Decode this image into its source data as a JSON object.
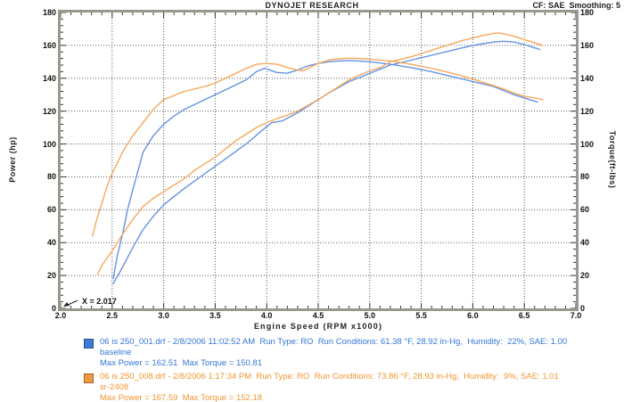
{
  "header": {
    "title": "DYNOJET RESEARCH",
    "cf_label": "CF: SAE  Smoothing: 5"
  },
  "axes": {
    "y_left_title": "Power (hp)",
    "y_right_title": "Torque(ft-lbs)",
    "x_title": "Engine Speed (RPM x1000)",
    "y_tick_labels": [
      "180",
      "160",
      "140",
      "120",
      "100",
      "80",
      "60",
      "40",
      "20",
      "0"
    ],
    "x_tick_labels": [
      "2.0",
      "2.5",
      "3.0",
      "3.5",
      "4.0",
      "4.5",
      "5.0",
      "5.5",
      "6.0",
      "6.5",
      "7.0"
    ]
  },
  "annotation": {
    "text": "X = 2.017"
  },
  "chart_data": {
    "type": "line",
    "title": "DYNOJET RESEARCH",
    "correction": "CF: SAE",
    "smoothing": "5",
    "xlabel": "Engine Speed (RPM x1000)",
    "ylabel_left": "Power (hp)",
    "ylabel_right": "Torque(ft-lbs)",
    "xlim": [
      2.0,
      7.0
    ],
    "ylim": [
      0,
      180
    ],
    "x_tick_step": 0.5,
    "y_tick_step": 20,
    "x_minor_step": 0.1,
    "y_minor_step": 4,
    "grid": "dotted",
    "grid_color": "#2e2e2e",
    "annotations": [
      {
        "text": "X = 2.017",
        "x": 2.017,
        "y": 0
      }
    ],
    "series": [
      {
        "name": "baseline power (hp)",
        "run": "06 is 250_001.drf",
        "color": "#6593E2",
        "max": 162.51,
        "x": [
          2.51,
          2.6,
          2.7,
          2.8,
          2.9,
          3.0,
          3.2,
          3.4,
          3.6,
          3.8,
          3.95,
          4.05,
          4.15,
          4.3,
          4.4,
          4.5,
          4.6,
          4.8,
          5.0,
          5.2,
          5.4,
          5.5,
          5.6,
          5.7,
          5.8,
          5.9,
          6.0,
          6.1,
          6.2,
          6.3,
          6.4,
          6.5,
          6.6,
          6.65
        ],
        "y": [
          15,
          25,
          37,
          48,
          56,
          63,
          73,
          82,
          91,
          100,
          108,
          113,
          114,
          119,
          123,
          127,
          131,
          138,
          143,
          148,
          151,
          152.5,
          154,
          155.5,
          157,
          158.5,
          160,
          161,
          162,
          162.5,
          162,
          160.5,
          158.5,
          157.5
        ]
      },
      {
        "name": "baseline torque (ft-lbs)",
        "run": "06 is 250_001.drf",
        "color": "#6593E2",
        "max": 150.81,
        "x": [
          2.51,
          2.55,
          2.6,
          2.65,
          2.7,
          2.8,
          2.9,
          3.0,
          3.1,
          3.2,
          3.3,
          3.4,
          3.5,
          3.6,
          3.7,
          3.8,
          3.9,
          3.98,
          4.1,
          4.2,
          4.3,
          4.4,
          4.5,
          4.6,
          4.7,
          4.8,
          4.9,
          5.0,
          5.2,
          5.4,
          5.6,
          5.8,
          6.0,
          6.1,
          6.2,
          6.3,
          6.4,
          6.5,
          6.6,
          6.63
        ],
        "y": [
          18,
          32,
          45,
          60,
          72,
          95,
          105,
          112,
          117,
          121,
          124,
          127,
          130,
          133,
          136,
          139,
          144,
          146,
          143.5,
          143,
          145,
          147.5,
          149,
          150,
          150.5,
          150.8,
          150.5,
          150,
          148.5,
          146.5,
          144,
          141,
          138,
          136.5,
          135,
          132.5,
          130,
          128,
          126,
          125.5
        ]
      },
      {
        "name": "sr-2408 power (hp)",
        "run": "06 is 250_008.drf",
        "color": "#F5A85C",
        "max": 167.59,
        "x": [
          2.36,
          2.4,
          2.5,
          2.6,
          2.7,
          2.8,
          2.9,
          3.0,
          3.1,
          3.2,
          3.3,
          3.4,
          3.5,
          3.6,
          3.7,
          3.8,
          3.9,
          4.0,
          4.1,
          4.2,
          4.3,
          4.4,
          4.5,
          4.6,
          4.7,
          4.8,
          4.9,
          5.0,
          5.1,
          5.2,
          5.3,
          5.4,
          5.5,
          5.6,
          5.7,
          5.8,
          5.9,
          6.0,
          6.1,
          6.2,
          6.25,
          6.3,
          6.4,
          6.5,
          6.6,
          6.68
        ],
        "y": [
          21,
          26,
          35,
          45,
          54,
          62,
          67,
          71,
          75,
          79,
          84,
          88,
          92,
          97,
          102,
          106,
          110,
          113,
          115.5,
          117.5,
          120,
          123.5,
          127,
          131,
          135,
          139,
          142,
          144.5,
          146.5,
          150,
          151.5,
          153,
          155,
          157,
          159,
          161,
          163,
          164.5,
          166,
          167.3,
          167.6,
          167,
          165.5,
          163.5,
          161.5,
          160
        ]
      },
      {
        "name": "sr-2408 torque (ft-lbs)",
        "run": "06 is 250_008.drf",
        "color": "#F5A85C",
        "max": 152.18,
        "x": [
          2.31,
          2.35,
          2.4,
          2.45,
          2.5,
          2.6,
          2.7,
          2.8,
          2.9,
          3.0,
          3.1,
          3.2,
          3.3,
          3.4,
          3.5,
          3.6,
          3.7,
          3.8,
          3.9,
          4.0,
          4.1,
          4.2,
          4.3,
          4.35,
          4.4,
          4.5,
          4.6,
          4.7,
          4.8,
          4.9,
          5.0,
          5.2,
          5.4,
          5.6,
          5.8,
          6.0,
          6.1,
          6.2,
          6.3,
          6.4,
          6.5,
          6.6,
          6.68
        ],
        "y": [
          44,
          54,
          64,
          74,
          82,
          95,
          105,
          113,
          121,
          127,
          129.5,
          132,
          133.5,
          135,
          137,
          140,
          143,
          146,
          148.5,
          149,
          148.5,
          146.5,
          145,
          144.5,
          146,
          149,
          151,
          151.8,
          152.2,
          152,
          151.5,
          150.5,
          148.5,
          146,
          143,
          139.5,
          137.5,
          135.5,
          133.5,
          131,
          129,
          128,
          127
        ]
      }
    ]
  },
  "legend": {
    "entries": [
      {
        "swatch_color": "#3C7CD8",
        "text_color": "#3577D8",
        "line1": "06 is 250_001.drf - 2/8/2006 11:02:52 AM  Run Type: RO  Run Conditions: 61.38 °F, 28.92 in-Hg,  Humidity:  22%, SAE: 1.00",
        "line2": "baseline",
        "line3": "Max Power = 162.51  Max Torque = 150.81"
      },
      {
        "swatch_color": "#F09A40",
        "text_color": "#F2952F",
        "line1": "06 is 250_008.drf - 2/8/2006 1:17:34 PM  Run Type: RO  Run Conditions: 73.86 °F, 28.93 in-Hg,  Humidity:  9%, SAE: 1.01",
        "line2": "sr-2408",
        "line3": "Max Power = 167.59  Max Torque = 152.18"
      }
    ]
  }
}
